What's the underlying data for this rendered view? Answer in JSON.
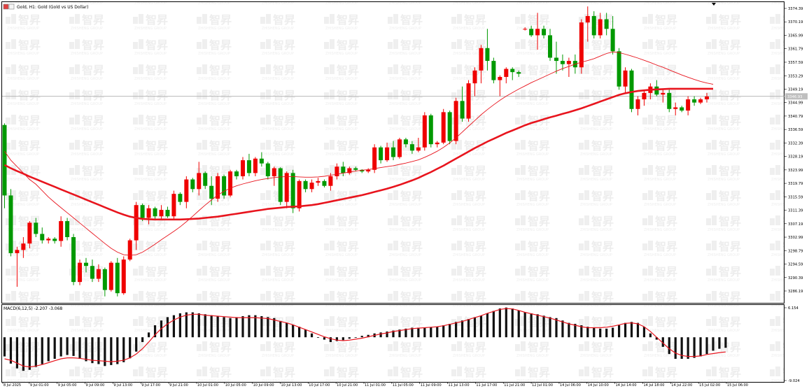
{
  "window": {
    "title": "Gold, H1: Gold (Gold vs US Dollar)",
    "indicator_label": "MACD(6,12,5) -2.207 -3.068",
    "current_price_label": "3346.93"
  },
  "chart_data": [
    {
      "type": "candlestick",
      "title": "Gold, H1: Gold (Gold vs US Dollar)",
      "ylim": [
        3283,
        3376
      ],
      "price_ticks": [
        "3374.39",
        "3370.19",
        "3365.99",
        "3361.79",
        "3357.59",
        "3353.29",
        "3349.19",
        "3344.99",
        "3340.79",
        "3336.59",
        "3332.39",
        "3328.19",
        "3323.99",
        "3319.79",
        "3315.59",
        "3311.39",
        "3307.19",
        "3302.99",
        "3298.79",
        "3294.59",
        "3290.39",
        "3286.19"
      ],
      "time_labels": [
        "8 Jul 2025",
        "9 Jul 01:00",
        "9 Jul 05:00",
        "9 Jul 09:00",
        "9 Jul 13:00",
        "9 Jul 17:00",
        "9 Jul 21:00",
        "10 Jul 01:00",
        "10 Jul 05:00",
        "10 Jul 09:00",
        "10 Jul 13:00",
        "10 Jul 17:00",
        "10 Jul 21:00",
        "11 Jul 01:00",
        "11 Jul 05:00",
        "11 Jul 09:00",
        "11 Jul 13:00",
        "11 Jul 17:00",
        "11 Jul 21:00",
        "12 Jul 01:00",
        "14 Jul 06:00",
        "14 Jul 10:00",
        "14 Jul 14:00",
        "14 Jul 18:00",
        "14 Jul 22:00",
        "15 Jul 02:00",
        "15 Jul 06:00"
      ],
      "current_price": 3346.93,
      "candles": [
        [
          3338.0,
          3338.5,
          3312.0,
          3316.0
        ],
        [
          3316.0,
          3318.0,
          3297.0,
          3298.0
        ],
        [
          3298.0,
          3300.0,
          3287.5,
          3299.0
        ],
        [
          3299.0,
          3303.0,
          3296.5,
          3301.0
        ],
        [
          3301.0,
          3308.0,
          3299.5,
          3307.5
        ],
        [
          3307.5,
          3309.0,
          3303.0,
          3304.0
        ],
        [
          3304.0,
          3306.0,
          3301.0,
          3302.0
        ],
        [
          3302.0,
          3303.0,
          3301.0,
          3302.5
        ],
        [
          3302.5,
          3303.0,
          3301.0,
          3301.8
        ],
        [
          3301.8,
          3309.5,
          3300.0,
          3308.0
        ],
        [
          3308.0,
          3309.0,
          3302.0,
          3303.0
        ],
        [
          3303.0,
          3304.0,
          3288.0,
          3289.0
        ],
        [
          3289.0,
          3296.0,
          3288.0,
          3295.0
        ],
        [
          3295.0,
          3296.5,
          3292.0,
          3294.0
        ],
        [
          3294.0,
          3296.0,
          3289.0,
          3290.0
        ],
        [
          3290.0,
          3294.5,
          3289.0,
          3293.0
        ],
        [
          3293.0,
          3293.5,
          3284.5,
          3286.5
        ],
        [
          3286.5,
          3295.5,
          3286.0,
          3295.0
        ],
        [
          3295.0,
          3296.5,
          3284.5,
          3285.5
        ],
        [
          3285.5,
          3297.0,
          3285.0,
          3296.0
        ],
        [
          3296.0,
          3302.5,
          3295.5,
          3302.0
        ],
        [
          3302.0,
          3314.0,
          3299.0,
          3313.0
        ],
        [
          3313.0,
          3313.5,
          3308.0,
          3309.0
        ],
        [
          3309.0,
          3313.0,
          3307.0,
          3312.0
        ],
        [
          3312.0,
          3312.5,
          3308.5,
          3309.5
        ],
        [
          3309.5,
          3313.0,
          3308.5,
          3311.5
        ],
        [
          3311.5,
          3312.5,
          3309.0,
          3309.5
        ],
        [
          3309.5,
          3317.5,
          3308.5,
          3316.5
        ],
        [
          3316.5,
          3317.0,
          3313.0,
          3314.0
        ],
        [
          3314.0,
          3322.0,
          3312.0,
          3321.0
        ],
        [
          3321.0,
          3321.5,
          3317.0,
          3318.0
        ],
        [
          3318.0,
          3326.5,
          3316.0,
          3323.0
        ],
        [
          3323.0,
          3323.5,
          3318.0,
          3319.0
        ],
        [
          3319.0,
          3322.0,
          3313.0,
          3315.0
        ],
        [
          3315.0,
          3323.0,
          3314.0,
          3322.0
        ],
        [
          3322.0,
          3322.5,
          3315.0,
          3316.0
        ],
        [
          3316.0,
          3324.0,
          3315.5,
          3323.5
        ],
        [
          3323.5,
          3324.0,
          3321.0,
          3322.0
        ],
        [
          3322.0,
          3328.0,
          3321.0,
          3327.0
        ],
        [
          3327.0,
          3329.0,
          3322.0,
          3323.0
        ],
        [
          3323.0,
          3328.0,
          3322.0,
          3327.5
        ],
        [
          3327.5,
          3329.5,
          3325.0,
          3326.0
        ],
        [
          3326.0,
          3326.5,
          3321.0,
          3322.0
        ],
        [
          3322.0,
          3325.0,
          3319.0,
          3324.5
        ],
        [
          3324.5,
          3324.8,
          3313.0,
          3314.0
        ],
        [
          3314.0,
          3323.5,
          3312.0,
          3323.0
        ],
        [
          3323.0,
          3324.0,
          3310.5,
          3312.0
        ],
        [
          3312.0,
          3321.0,
          3311.0,
          3320.5
        ],
        [
          3320.5,
          3321.0,
          3317.0,
          3318.0
        ],
        [
          3318.0,
          3321.0,
          3317.0,
          3320.0
        ],
        [
          3320.0,
          3321.5,
          3319.0,
          3320.5
        ],
        [
          3320.5,
          3321.0,
          3318.5,
          3319.0
        ],
        [
          3319.0,
          3323.0,
          3317.5,
          3322.0
        ],
        [
          3322.0,
          3326.0,
          3321.0,
          3325.0
        ],
        [
          3325.0,
          3326.5,
          3322.0,
          3323.0
        ],
        [
          3323.0,
          3325.0,
          3322.5,
          3324.5
        ],
        [
          3324.5,
          3325.0,
          3323.5,
          3324.0
        ],
        [
          3324.0,
          3324.2,
          3323.0,
          3323.5
        ],
        [
          3323.5,
          3324.5,
          3323.0,
          3324.0
        ],
        [
          3324.0,
          3332.0,
          3323.0,
          3331.0
        ],
        [
          3331.0,
          3331.5,
          3326.0,
          3327.0
        ],
        [
          3327.0,
          3332.5,
          3326.5,
          3331.0
        ],
        [
          3331.0,
          3333.0,
          3327.0,
          3328.0
        ],
        [
          3328.0,
          3334.0,
          3327.5,
          3333.5
        ],
        [
          3333.5,
          3334.0,
          3331.0,
          3332.0
        ],
        [
          3332.0,
          3333.0,
          3329.0,
          3330.0
        ],
        [
          3330.0,
          3334.0,
          3329.5,
          3331.0
        ],
        [
          3331.0,
          3342.0,
          3330.0,
          3341.0
        ],
        [
          3341.0,
          3341.5,
          3331.0,
          3332.0
        ],
        [
          3332.0,
          3333.0,
          3331.0,
          3332.5
        ],
        [
          3332.5,
          3343.0,
          3332.0,
          3342.0
        ],
        [
          3342.0,
          3342.5,
          3332.0,
          3333.0
        ],
        [
          3333.0,
          3346.5,
          3332.0,
          3345.5
        ],
        [
          3345.5,
          3350.0,
          3339.0,
          3340.0
        ],
        [
          3340.0,
          3352.0,
          3339.0,
          3351.0
        ],
        [
          3351.0,
          3356.0,
          3347.0,
          3355.0
        ],
        [
          3355.0,
          3363.0,
          3351.0,
          3362.0
        ],
        [
          3362.0,
          3368.0,
          3355.0,
          3358.0
        ],
        [
          3358.0,
          3359.0,
          3351.0,
          3352.0
        ],
        [
          3352.0,
          3353.5,
          3347.0,
          3353.0
        ],
        [
          3353.0,
          3356.0,
          3351.0,
          3355.5
        ],
        [
          3355.5,
          3356.0,
          3352.0,
          3354.5
        ],
        [
          3354.5,
          3355.0,
          3353.0,
          3354.0
        ],
        [
          3368.0,
          3368.5,
          3367.5,
          3368.0
        ],
        [
          3368.0,
          3369.0,
          3365.5,
          3366.0
        ],
        [
          3366.0,
          3373.0,
          3361.5,
          3368.0
        ],
        [
          3368.0,
          3369.0,
          3365.0,
          3366.0
        ],
        [
          3366.0,
          3368.0,
          3358.0,
          3359.0
        ],
        [
          3359.0,
          3364.0,
          3354.0,
          3358.0
        ],
        [
          3358.0,
          3360.0,
          3355.0,
          3357.0
        ],
        [
          3357.0,
          3359.0,
          3353.0,
          3358.0
        ],
        [
          3358.0,
          3360.0,
          3354.0,
          3356.0
        ],
        [
          3356.0,
          3371.0,
          3354.0,
          3370.0
        ],
        [
          3370.0,
          3375.0,
          3364.0,
          3372.0
        ],
        [
          3372.0,
          3373.5,
          3365.0,
          3366.0
        ],
        [
          3366.0,
          3373.0,
          3365.0,
          3371.0
        ],
        [
          3371.0,
          3373.0,
          3366.0,
          3368.0
        ],
        [
          3368.0,
          3372.0,
          3360.0,
          3361.0
        ],
        [
          3361.0,
          3362.0,
          3349.0,
          3350.0
        ],
        [
          3350.0,
          3356.0,
          3348.0,
          3355.0
        ],
        [
          3355.0,
          3355.5,
          3342.0,
          3343.0
        ],
        [
          3343.0,
          3347.0,
          3341.0,
          3346.0
        ],
        [
          3346.0,
          3349.0,
          3344.0,
          3348.0
        ],
        [
          3348.0,
          3351.0,
          3346.0,
          3350.0
        ],
        [
          3350.0,
          3352.0,
          3347.0,
          3347.5
        ],
        [
          3347.5,
          3349.0,
          3345.0,
          3348.0
        ],
        [
          3348.0,
          3349.0,
          3342.0,
          3343.0
        ],
        [
          3343.0,
          3345.0,
          3341.0,
          3343.5
        ],
        [
          3343.5,
          3344.0,
          3342.0,
          3342.5
        ],
        [
          3342.5,
          3347.0,
          3341.0,
          3346.0
        ],
        [
          3346.0,
          3347.0,
          3344.0,
          3345.0
        ],
        [
          3345.0,
          3346.5,
          3344.5,
          3346.0
        ],
        [
          3346.0,
          3348.0,
          3345.0,
          3346.9
        ]
      ],
      "ma_fast": [
        3329.8,
        3327.0,
        3325.0,
        3323.0,
        3321.0,
        3319.5,
        3317.5,
        3315.5,
        3313.8,
        3312.2,
        3310.6,
        3309.0,
        3307.4,
        3305.8,
        3304.2,
        3302.6,
        3301.0,
        3299.5,
        3298.3,
        3297.5,
        3297.3,
        3297.5,
        3298.3,
        3299.5,
        3300.8,
        3302.2,
        3303.5,
        3304.8,
        3306.2,
        3307.8,
        3309.5,
        3311.3,
        3313.0,
        3314.6,
        3316.1,
        3317.3,
        3318.3,
        3319.0,
        3319.6,
        3320.1,
        3320.6,
        3321.0,
        3321.3,
        3321.6,
        3321.8,
        3321.9,
        3321.9,
        3321.8,
        3321.7,
        3321.7,
        3321.8,
        3322.0,
        3322.3,
        3322.6,
        3323.0,
        3323.3,
        3323.6,
        3323.9,
        3324.1,
        3324.4,
        3324.7,
        3325.0,
        3325.3,
        3325.7,
        3326.1,
        3326.6,
        3327.1,
        3327.9,
        3328.8,
        3329.8,
        3331.0,
        3332.4,
        3334.0,
        3335.8,
        3337.6,
        3339.4,
        3341.2,
        3342.8,
        3344.3,
        3345.7,
        3347.0,
        3348.1,
        3349.2,
        3350.2,
        3351.2,
        3352.1,
        3353.0,
        3353.9,
        3354.8,
        3355.6,
        3356.3,
        3357.0,
        3357.6,
        3358.1,
        3358.7,
        3359.5,
        3360.3,
        3360.8,
        3360.6,
        3360.1,
        3359.5,
        3358.9,
        3358.2,
        3357.5,
        3356.7,
        3356.0,
        3355.2,
        3354.4,
        3353.6,
        3352.9,
        3352.2,
        3351.6,
        3351.1,
        3350.7
      ],
      "ma_slow": [
        3325.5,
        3324.5,
        3323.6,
        3322.8,
        3321.9,
        3321.1,
        3320.3,
        3319.5,
        3318.7,
        3317.9,
        3317.1,
        3316.3,
        3315.5,
        3314.7,
        3313.9,
        3313.1,
        3312.3,
        3311.5,
        3310.7,
        3310.0,
        3309.4,
        3309.0,
        3308.7,
        3308.6,
        3308.5,
        3308.5,
        3308.5,
        3308.5,
        3308.5,
        3308.6,
        3308.7,
        3308.8,
        3309.0,
        3309.2,
        3309.4,
        3309.7,
        3310.0,
        3310.3,
        3310.6,
        3310.9,
        3311.2,
        3311.5,
        3311.8,
        3312.0,
        3312.2,
        3312.4,
        3312.5,
        3312.6,
        3312.8,
        3313.0,
        3313.3,
        3313.7,
        3314.1,
        3314.5,
        3314.9,
        3315.3,
        3315.7,
        3316.1,
        3316.6,
        3317.1,
        3317.6,
        3318.1,
        3318.7,
        3319.3,
        3320.0,
        3320.7,
        3321.5,
        3322.4,
        3323.3,
        3324.3,
        3325.3,
        3326.4,
        3327.5,
        3328.6,
        3329.7,
        3330.8,
        3331.8,
        3332.8,
        3333.7,
        3334.6,
        3335.5,
        3336.3,
        3337.1,
        3337.9,
        3338.6,
        3339.2,
        3339.8,
        3340.4,
        3340.9,
        3341.5,
        3342.0,
        3342.6,
        3343.2,
        3343.9,
        3344.6,
        3345.3,
        3346.0,
        3346.7,
        3347.4,
        3347.9,
        3348.3,
        3348.6,
        3348.8,
        3349.0,
        3349.1,
        3349.2,
        3349.3,
        3349.3,
        3349.3,
        3349.3,
        3349.3,
        3349.3,
        3349.3,
        3349.3
      ],
      "series": [
        {
          "name": "",
          "type": "candles"
        },
        {
          "name": "",
          "type": "line",
          "key": "ma_fast"
        },
        {
          "name": "",
          "type": "line",
          "key": "ma_slow"
        }
      ]
    },
    {
      "type": "macd",
      "title": "MACD(6,12,5) -2.207 -3.068",
      "ylim": [
        -9.024,
        6.154
      ],
      "ticks": [
        "6.154",
        "-9.024"
      ],
      "histogram": [
        -4.0,
        -5.5,
        -6.5,
        -7.0,
        -6.8,
        -6.2,
        -5.6,
        -5.0,
        -4.5,
        -4.0,
        -3.7,
        -3.9,
        -4.5,
        -5.0,
        -5.4,
        -5.6,
        -6.0,
        -5.8,
        -5.6,
        -5.2,
        -4.4,
        -3.0,
        -1.0,
        1.0,
        2.5,
        3.5,
        4.2,
        4.6,
        5.0,
        5.2,
        5.2,
        5.0,
        4.8,
        4.6,
        4.4,
        4.2,
        4.0,
        4.2,
        4.4,
        4.6,
        4.6,
        4.4,
        4.2,
        4.0,
        3.4,
        3.0,
        2.6,
        2.2,
        1.6,
        0.8,
        0.0,
        -0.5,
        -1.0,
        -0.8,
        -0.6,
        -0.3,
        0.0,
        0.3,
        0.5,
        0.8,
        1.0,
        1.2,
        1.4,
        1.6,
        1.8,
        2.0,
        2.0,
        2.0,
        2.1,
        2.2,
        2.5,
        2.8,
        3.2,
        3.5,
        3.8,
        4.2,
        4.5,
        5.0,
        5.5,
        6.0,
        6.2,
        6.0,
        5.6,
        5.2,
        5.0,
        4.8,
        4.5,
        4.2,
        4.0,
        3.5,
        3.0,
        2.8,
        2.5,
        2.2,
        2.0,
        1.8,
        1.8,
        2.0,
        2.5,
        3.0,
        3.2,
        3.0,
        2.2,
        0.8,
        -0.5,
        -2.0,
        -3.5,
        -4.5,
        -4.5,
        -4.5,
        -4.3,
        -4.0,
        -3.5,
        -2.8,
        -2.4,
        -2.2
      ],
      "signal": [
        -4.5,
        -4.8,
        -5.4,
        -6.0,
        -6.2,
        -6.0,
        -5.7,
        -5.3,
        -4.9,
        -4.5,
        -4.3,
        -4.3,
        -4.4,
        -4.6,
        -4.8,
        -4.9,
        -5.0,
        -5.1,
        -5.0,
        -4.8,
        -4.3,
        -3.5,
        -2.4,
        -1.0,
        0.5,
        1.8,
        2.8,
        3.6,
        4.2,
        4.6,
        4.8,
        4.8,
        4.6,
        4.5,
        4.4,
        4.3,
        4.2,
        4.1,
        4.1,
        4.1,
        4.1,
        4.0,
        3.9,
        3.6,
        3.3,
        3.0,
        2.6,
        2.1,
        1.6,
        1.1,
        0.6,
        0.1,
        -0.3,
        -0.6,
        -0.7,
        -0.6,
        -0.4,
        -0.2,
        0.1,
        0.4,
        0.7,
        0.9,
        1.2,
        1.4,
        1.6,
        1.8,
        1.9,
        2.0,
        2.1,
        2.2,
        2.4,
        2.7,
        3.0,
        3.3,
        3.7,
        4.1,
        4.5,
        5.0,
        5.4,
        5.8,
        6.0,
        5.9,
        5.6,
        5.2,
        4.9,
        4.6,
        4.3,
        4.0,
        3.6,
        3.2,
        2.8,
        2.5,
        2.2,
        2.0,
        2.0,
        2.0,
        2.1,
        2.3,
        2.6,
        2.9,
        3.0,
        2.8,
        2.2,
        1.2,
        0.0,
        -1.2,
        -2.4,
        -3.3,
        -3.8,
        -4.0,
        -4.0,
        -3.9,
        -3.6,
        -3.4,
        -3.2,
        -3.07
      ]
    }
  ],
  "colors": {
    "bull": "#ef0000",
    "bear": "#009900",
    "ma_line": "#e8141d",
    "signal": "#e8141d",
    "histogram": "#111111",
    "price_line": "#a0a0a0",
    "grid_bg": "#ffffff"
  },
  "watermark": {
    "text": "智昇"
  }
}
